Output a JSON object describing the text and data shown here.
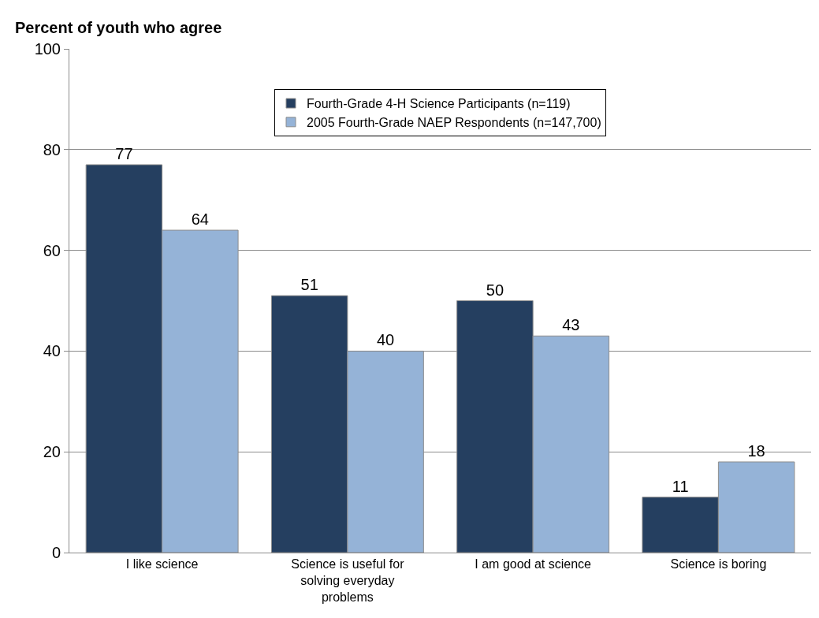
{
  "chart_data": {
    "type": "bar",
    "ylabel": "Percent of youth who agree",
    "categories": [
      "I like science",
      "Science is useful for solving everyday problems",
      "I am good at science",
      "Science is boring"
    ],
    "series": [
      {
        "name": "Fourth-Grade 4-H Science Participants (n=119)",
        "color": "#253f60",
        "values": [
          77,
          51,
          50,
          11
        ]
      },
      {
        "name": "2005 Fourth-Grade NAEP Respondents (n=147,700)",
        "color": "#95b3d7",
        "values": [
          64,
          40,
          43,
          18
        ]
      }
    ],
    "ylim": [
      0,
      100
    ],
    "yticks": [
      0,
      20,
      40,
      60,
      80,
      100
    ],
    "grid": "y",
    "legend": "top",
    "data_labels": true
  }
}
